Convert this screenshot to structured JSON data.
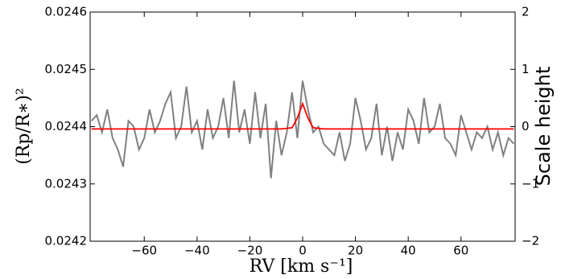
{
  "chart_data": {
    "type": "line",
    "xlabel": "RV [km s⁻¹]",
    "ylabel": "(Rp/R∗)²",
    "y2label": "Scale height",
    "x": [
      -80,
      -78,
      -76,
      -74,
      -72,
      -70,
      -68,
      -66,
      -64,
      -62,
      -60,
      -58,
      -56,
      -54,
      -52,
      -50,
      -48,
      -46,
      -44,
      -42,
      -40,
      -38,
      -36,
      -34,
      -32,
      -30,
      -28,
      -26,
      -24,
      -22,
      -20,
      -18,
      -16,
      -14,
      -12,
      -10,
      -8,
      -6,
      -4,
      -2,
      0,
      2,
      4,
      6,
      8,
      10,
      12,
      14,
      16,
      18,
      20,
      22,
      24,
      26,
      28,
      30,
      32,
      34,
      36,
      38,
      40,
      42,
      44,
      46,
      48,
      50,
      52,
      54,
      56,
      58,
      60,
      62,
      64,
      66,
      68,
      70,
      72,
      74,
      76,
      78,
      80
    ],
    "series": [
      {
        "color": "#808080",
        "values": [
          0.02441,
          0.02442,
          0.02439,
          0.02443,
          0.02438,
          0.02436,
          0.02433,
          0.02441,
          0.0244,
          0.02436,
          0.02438,
          0.02443,
          0.02439,
          0.02441,
          0.02444,
          0.02446,
          0.02438,
          0.0244,
          0.02447,
          0.02439,
          0.02441,
          0.02436,
          0.02443,
          0.02438,
          0.0244,
          0.02445,
          0.02438,
          0.02448,
          0.02439,
          0.02443,
          0.02437,
          0.02446,
          0.02438,
          0.02444,
          0.02431,
          0.02441,
          0.02435,
          0.02439,
          0.02446,
          0.02438,
          0.02448,
          0.02443,
          0.02439,
          0.0244,
          0.02437,
          0.02436,
          0.02435,
          0.02439,
          0.02434,
          0.02437,
          0.02445,
          0.02441,
          0.02436,
          0.02438,
          0.02444,
          0.02435,
          0.0244,
          0.02434,
          0.02439,
          0.02436,
          0.02443,
          0.02441,
          0.02437,
          0.02445,
          0.02439,
          0.0244,
          0.02444,
          0.02438,
          0.02437,
          0.02435,
          0.02442,
          0.02439,
          0.02436,
          0.02439,
          0.02438,
          0.0244,
          0.02436,
          0.02439,
          0.02435,
          0.02438,
          0.02437
        ]
      },
      {
        "color": "#ff0000",
        "values": [
          0.024396,
          0.024396,
          0.024396,
          0.024396,
          0.024396,
          0.024396,
          0.024396,
          0.024396,
          0.024396,
          0.024396,
          0.024396,
          0.024396,
          0.024396,
          0.024396,
          0.024396,
          0.024396,
          0.024396,
          0.024396,
          0.024396,
          0.024396,
          0.024396,
          0.024396,
          0.024396,
          0.024396,
          0.024396,
          0.024396,
          0.024396,
          0.024396,
          0.024396,
          0.024396,
          0.024396,
          0.024396,
          0.024396,
          0.024396,
          0.024396,
          0.024396,
          0.024396,
          0.024397,
          0.024398,
          0.024415,
          0.02444,
          0.024415,
          0.024398,
          0.024397,
          0.024396,
          0.024396,
          0.024396,
          0.024396,
          0.024396,
          0.024396,
          0.024396,
          0.024396,
          0.024396,
          0.024396,
          0.024396,
          0.024396,
          0.024396,
          0.024396,
          0.024396,
          0.024396,
          0.024396,
          0.024396,
          0.024396,
          0.024396,
          0.024396,
          0.024396,
          0.024396,
          0.024396,
          0.024396,
          0.024396,
          0.024396,
          0.024396,
          0.024396,
          0.024396,
          0.024396,
          0.024396,
          0.024396,
          0.024396,
          0.024396,
          0.024396,
          0.024396
        ]
      }
    ],
    "xlim": [
      -80.5,
      80.5
    ],
    "xticks": [
      {
        "value": -60,
        "label": "−60"
      },
      {
        "value": -40,
        "label": "−40"
      },
      {
        "value": -20,
        "label": "−20"
      },
      0,
      20,
      40,
      60
    ],
    "ylim": [
      0.0242,
      0.0246
    ],
    "yticks": [
      0.0242,
      0.0243,
      0.0244,
      0.0245,
      0.0246
    ],
    "y2lim": [
      -2,
      2
    ],
    "y2ticks": [
      {
        "value": -2,
        "label": "−2"
      },
      {
        "value": -1,
        "label": "−1"
      },
      0,
      1,
      2
    ]
  }
}
